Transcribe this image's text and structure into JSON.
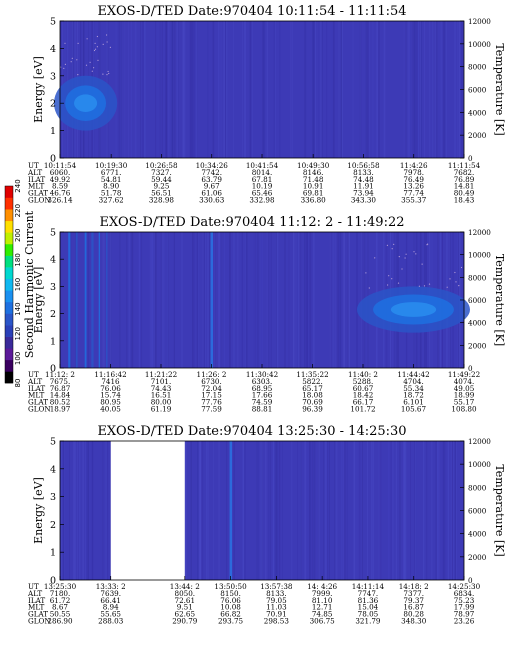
{
  "colorbar": {
    "label": "Second Harmonic Current",
    "ticks": [
      "80",
      "100",
      "120",
      "140",
      "160",
      "180",
      "200",
      "220",
      "240"
    ],
    "colors": [
      "#000000",
      "#3a0060",
      "#5c1a9a",
      "#3a2a9a",
      "#2a40b8",
      "#2a55c8",
      "#1e70e0",
      "#1a90f0",
      "#10b8f0",
      "#00d8d0",
      "#00e080",
      "#30ee00",
      "#c0f000",
      "#ffe000",
      "#ff9000",
      "#ff3000",
      "#e00000"
    ]
  },
  "chart_data": [
    {
      "type": "heatmap",
      "title": "EXOS-D/TED   Date:970404   10:11:54 - 11:11:54",
      "ylabel": "Energy [eV]",
      "y2label": "Temperature [K]",
      "ylim": [
        0,
        5
      ],
      "y2lim": [
        0,
        12000
      ],
      "y_ticks": [
        "0",
        "1",
        "2",
        "3",
        "4",
        "5"
      ],
      "y2_ticks": [
        "0",
        "2000",
        "4000",
        "6000",
        "8000",
        "10000",
        "12000"
      ],
      "background": "#3d3ab6",
      "features": [
        {
          "x_start": "10:11:54",
          "x_end": "10:19:30",
          "energy_range": [
            1.0,
            3.0
          ],
          "level": "enhanced"
        }
      ],
      "gaps": [],
      "ephemeris": {
        "labels": [
          "UT",
          "ALT",
          "ILAT",
          "MLT",
          "GLAT",
          "GLON"
        ],
        "columns": [
          [
            "10:11:54",
            "6060.",
            "49.92",
            "8.59",
            "46.76",
            "326.14"
          ],
          [
            "10:19:30",
            "6771.",
            "54.81",
            "8.90",
            "51.78",
            "327.62"
          ],
          [
            "10:26:58",
            "7327.",
            "59.44",
            "9.25",
            "56.51",
            "328.98"
          ],
          [
            "10:34:26",
            "7742.",
            "63.79",
            "9.67",
            "61.06",
            "330.63"
          ],
          [
            "10:41:54",
            "8014.",
            "67.81",
            "10.19",
            "65.46",
            "332.98"
          ],
          [
            "10:49:30",
            "8146.",
            "71.48",
            "10.91",
            "69.81",
            "336.80"
          ],
          [
            "10:56:58",
            "8133.",
            "74.48",
            "11.91",
            "73.94",
            "343.30"
          ],
          [
            "11:4:26",
            "7978.",
            "76.49",
            "13.26",
            "77.74",
            "355.37"
          ],
          [
            "11:11:54",
            "7682.",
            "76.89",
            "14.81",
            "80.49",
            "18.43"
          ]
        ]
      }
    },
    {
      "type": "heatmap",
      "title": "EXOS-D/TED   Date:970404   11:12: 2 - 11:49:22",
      "ylabel": "Energy [eV]",
      "y2label": "Temperature [K]",
      "ylim": [
        0,
        5
      ],
      "y2lim": [
        0,
        12000
      ],
      "y_ticks": [
        "0",
        "1",
        "2",
        "3",
        "4",
        "5"
      ],
      "y2_ticks": [
        "0",
        "2000",
        "4000",
        "6000",
        "8000",
        "10000",
        "12000"
      ],
      "background": "#3d3ab6",
      "features": [
        {
          "x_start": "11:12: 2",
          "x_end": "11:16:42",
          "energy_range": [
            0,
            5
          ],
          "level": "vertical streaks"
        },
        {
          "x_start": "11:26: 2",
          "x_end": "11:26: 2",
          "energy_range": [
            0,
            5
          ],
          "level": "vertical streak"
        },
        {
          "x_start": "11:40: 2",
          "x_end": "11:49:22",
          "energy_range": [
            1.3,
            3.0
          ],
          "level": "enhanced"
        }
      ],
      "gaps": [],
      "ephemeris": {
        "labels": [
          "UT",
          "ALT",
          "ILAT",
          "MLT",
          "GLAT",
          "GLON"
        ],
        "columns": [
          [
            "11:12: 2",
            "7675.",
            "76.87",
            "14.84",
            "80.52",
            "18.97"
          ],
          [
            "11:16:42",
            "7416",
            "76.06",
            "15.74",
            "80.95",
            "40.05"
          ],
          [
            "11:21:22",
            "7101.",
            "74.43",
            "16.51",
            "80.00",
            "61.19"
          ],
          [
            "11:26: 2",
            "6730.",
            "72.04",
            "17.15",
            "77.76",
            "77.59"
          ],
          [
            "11:30:42",
            "6303.",
            "68.95",
            "17.66",
            "74.59",
            "88.81"
          ],
          [
            "11:35:22",
            "5822.",
            "65.17",
            "18.08",
            "70.69",
            "96.39"
          ],
          [
            "11:40: 2",
            "5288.",
            "60.67",
            "18.42",
            "66.17",
            "101.72"
          ],
          [
            "11:44:42",
            "4704.",
            "55.34",
            "18.72",
            "6.101",
            "105.67"
          ],
          [
            "11:49:22",
            "4074.",
            "49.05",
            "18.99",
            "55.17",
            "108.80"
          ]
        ]
      }
    },
    {
      "type": "heatmap",
      "title": "EXOS-D/TED   Date:970404   13:25:30 - 14:25:30",
      "ylabel": "Energy [eV]",
      "y2label": "Temperature [K]",
      "ylim": [
        0,
        5
      ],
      "y2lim": [
        0,
        12000
      ],
      "y_ticks": [
        "0",
        "1",
        "2",
        "3",
        "4",
        "5"
      ],
      "y2_ticks": [
        "0",
        "2000",
        "4000",
        "6000",
        "8000",
        "10000",
        "12000"
      ],
      "background": "#3d3ab6",
      "features": [
        {
          "x_start": "13:50:50",
          "x_end": "13:50:50",
          "energy_range": [
            0,
            5
          ],
          "level": "vertical streak"
        }
      ],
      "gaps": [
        {
          "x_start": "13:33: 2",
          "x_end": "13:44: 2"
        }
      ],
      "ephemeris": {
        "labels": [
          "UT",
          "ALT",
          "ILAT",
          "MLT",
          "GLAT",
          "GLON"
        ],
        "columns": [
          [
            "13:25:30",
            "7180.",
            "61.72",
            "8.67",
            "50.55",
            "286.90"
          ],
          [
            "13:33: 2",
            "7639.",
            "66.41",
            "8.94",
            "55.65",
            "288.03"
          ],
          [
            "13:44: 2",
            "8050.",
            "72.61",
            "9.51",
            "62.65",
            "290.79"
          ],
          [
            "13:50:50",
            "8150.",
            "76.06",
            "10.08",
            "66.82",
            "293.75"
          ],
          [
            "13:57:38",
            "8133.",
            "79.05",
            "11.03",
            "70.91",
            "298.53"
          ],
          [
            "14: 4:26",
            "7999.",
            "81.10",
            "12.71",
            "74.85",
            "306.75"
          ],
          [
            "14:11:14",
            "7747.",
            "81.36",
            "15.04",
            "78.05",
            "321.79"
          ],
          [
            "14:18: 2",
            "7377.",
            "79.37",
            "16.87",
            "80.28",
            "348.30"
          ],
          [
            "14:25:30",
            "6834.",
            "75.23",
            "17.99",
            "78.97",
            "23.26"
          ]
        ]
      }
    }
  ]
}
